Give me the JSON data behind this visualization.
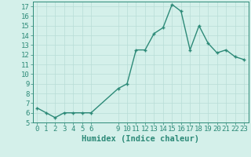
{
  "x": [
    0,
    1,
    2,
    3,
    4,
    5,
    6,
    9,
    10,
    11,
    12,
    13,
    14,
    15,
    16,
    17,
    18,
    19,
    20,
    21,
    22,
    23
  ],
  "y": [
    6.5,
    6.0,
    5.5,
    6.0,
    6.0,
    6.0,
    6.0,
    8.5,
    9.0,
    12.5,
    12.5,
    14.2,
    14.8,
    17.2,
    16.5,
    12.5,
    15.0,
    13.2,
    12.2,
    12.5,
    11.8,
    11.5
  ],
  "line_color": "#2d8a78",
  "marker": "+",
  "marker_size": 3,
  "linewidth": 1.0,
  "bg_color": "#d4f0ea",
  "grid_color": "#b8ddd6",
  "xlabel": "Humidex (Indice chaleur)",
  "ylim": [
    5,
    17.5
  ],
  "yticks": [
    5,
    6,
    7,
    8,
    9,
    10,
    11,
    12,
    13,
    14,
    15,
    16,
    17
  ],
  "xticks": [
    0,
    1,
    2,
    3,
    4,
    5,
    6,
    9,
    10,
    11,
    12,
    13,
    14,
    15,
    16,
    17,
    18,
    19,
    20,
    21,
    22,
    23
  ],
  "xlim": [
    -0.5,
    23.5
  ],
  "xlabel_fontsize": 7.5,
  "tick_fontsize": 6.5,
  "tick_color": "#2d8a78",
  "axis_color": "#2d8a78"
}
